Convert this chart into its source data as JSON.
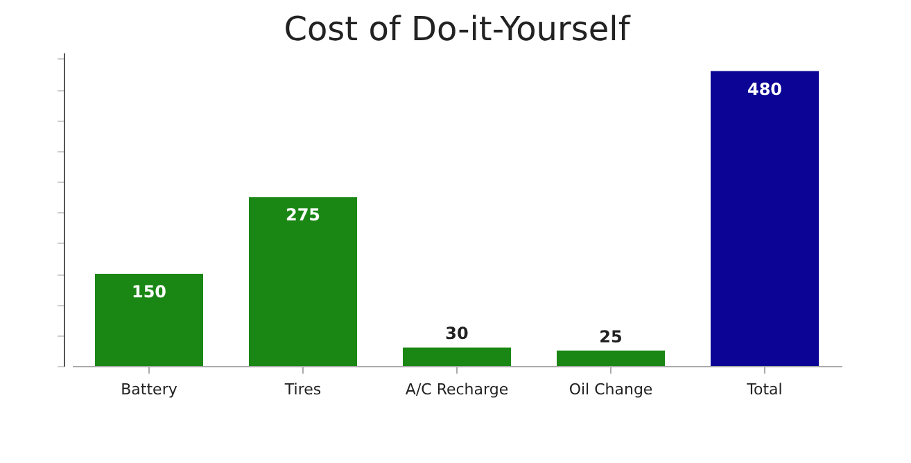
{
  "chart_data": {
    "type": "bar",
    "title": "Cost of Do-it-Yourself",
    "categories": [
      "Battery",
      "Tires",
      "A/C Recharge",
      "Oil Change",
      "Total"
    ],
    "values": [
      150,
      275,
      30,
      25,
      480
    ],
    "colors": [
      "#1a8714",
      "#1a8714",
      "#1a8714",
      "#1a8714",
      "#0b0494"
    ],
    "ylim": [
      0,
      510
    ],
    "data_labels": true,
    "tick_labels": "x",
    "grid": false
  }
}
